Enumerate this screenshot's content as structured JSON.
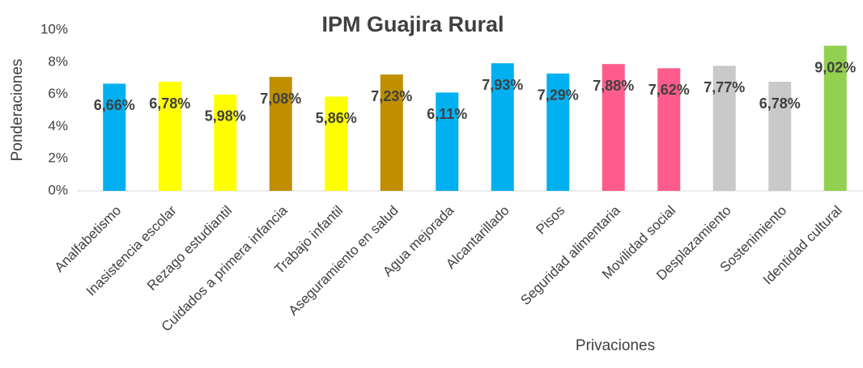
{
  "chart_data": {
    "type": "bar",
    "title": "IPM Guajira Rural",
    "x_label": "Privaciones",
    "y_label": "Ponderaciones",
    "categories": [
      "Analfabetismo",
      "Inasistencia escolar",
      "Rezago estudiantil",
      "Cuidados a primera infancia",
      "Trabajo infantil",
      "Aseguramiento en salud",
      "Agua mejorada",
      "Alcantarillado",
      "Pisos",
      "Seguridad alimentaria",
      "Movilidad social",
      "Desplazamiento",
      "Sostenimiento",
      "Identidad cultural"
    ],
    "values": [
      6.66,
      6.78,
      5.98,
      7.08,
      5.86,
      7.23,
      6.11,
      7.93,
      7.29,
      7.88,
      7.62,
      7.77,
      6.78,
      9.02
    ],
    "value_labels": [
      "6,66%",
      "6,78%",
      "5,98%",
      "7,08%",
      "5,86%",
      "7,23%",
      "6,11%",
      "7,93%",
      "7,29%",
      "7,88%",
      "7,62%",
      "7,77%",
      "6,78%",
      "9,02%"
    ],
    "colors": [
      "#00B0F0",
      "#FFFF00",
      "#FFFF00",
      "#BF8F00",
      "#FFFF00",
      "#BF8F00",
      "#00B0F0",
      "#00B0F0",
      "#00B0F0",
      "#FF5C8D",
      "#FF5C8D",
      "#C9C9C9",
      "#C9C9C9",
      "#92D050"
    ],
    "ylim": [
      0,
      10
    ],
    "yticks": [
      {
        "value": 0,
        "label": "0%"
      },
      {
        "value": 2,
        "label": "2%"
      },
      {
        "value": 4,
        "label": "4%"
      },
      {
        "value": 6,
        "label": "6%"
      },
      {
        "value": 8,
        "label": "8%"
      },
      {
        "value": 10,
        "label": "10%"
      }
    ],
    "grid": false
  }
}
